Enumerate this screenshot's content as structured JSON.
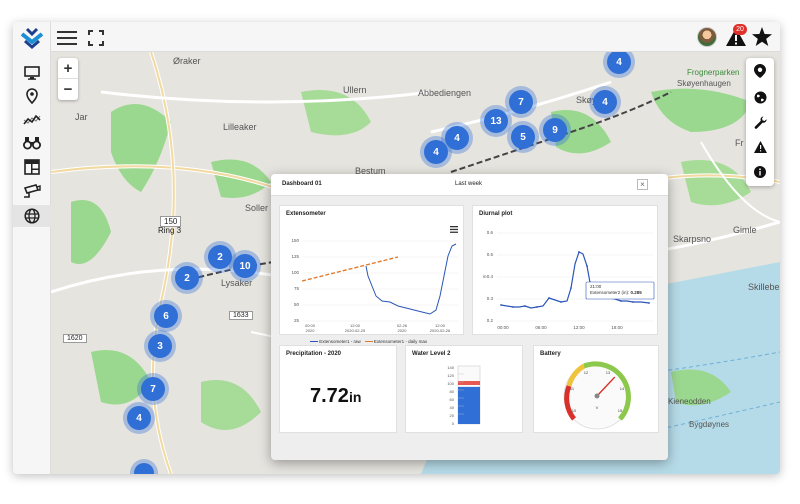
{
  "topbar": {
    "alert_count": "20"
  },
  "sidebar": {
    "items": [
      {
        "icon": "monitor-icon"
      },
      {
        "icon": "location-pin-icon"
      },
      {
        "icon": "trend-line-icon"
      },
      {
        "icon": "binoculars-icon"
      },
      {
        "icon": "layout-icon"
      },
      {
        "icon": "camera-icon"
      },
      {
        "icon": "globe-icon",
        "active": true
      }
    ]
  },
  "map": {
    "zoom_in": "+",
    "zoom_out": "−",
    "labels": {
      "oraker": "Øraker",
      "ullern": "Ullern",
      "abbediengen": "Abbediengen",
      "lilleaker": "Lilleaker",
      "jar": "Jar",
      "skoyen": "Skøyen",
      "skoyenhaugen": "Skøyenhaugen",
      "frognerparken": "Frognerparken",
      "bestum": "Bestum",
      "sollerud": "Soller",
      "lysaker": "Lysaker",
      "ring3_num": "150",
      "ring3": "Ring 3",
      "r1633": "1633",
      "r1620": "1620",
      "skarpsno": "Skarpsno",
      "gimle": "Gimle",
      "skillebekk": "Skillebe",
      "kieneodden": "Kieneodden",
      "bygdoynes": "Bygdøynes",
      "fr": "Fr"
    },
    "clusters": [
      "4",
      "4",
      "7",
      "13",
      "4",
      "5",
      "9",
      "4",
      "6",
      "2",
      "10",
      "2",
      "6",
      "3",
      "7",
      "4"
    ]
  },
  "dashboard": {
    "title": "Dashboard 01",
    "range": "Last week",
    "close": "×",
    "extensometer": {
      "title": "Extensometer",
      "legend_raw": "Extensometer1 - raw",
      "legend_max": "Extensometer1 - daily max",
      "y_ticks": [
        "150",
        "125",
        "100",
        "75",
        "50",
        "25"
      ],
      "x_ticks": [
        "00:00\n2020-02-25",
        "12:00\n2020-02-25",
        "00:00\n2020-02-26",
        "12:00\n2020-02-26"
      ]
    },
    "diurnal": {
      "title": "Diurnal plot",
      "y_ticks": [
        "0.6",
        "0.5",
        "0.4",
        "0.3",
        "0.2"
      ],
      "x_ticks": [
        "00:00",
        "06:00",
        "12:00",
        "18:00"
      ],
      "y_unit": "in",
      "tooltip_time": "21:00",
      "tooltip_series": "Extensometer2 (in):",
      "tooltip_value": "0.285"
    },
    "precipitation": {
      "title": "Precipitation - 2020",
      "value": "7.72",
      "unit": "in"
    },
    "water": {
      "title": "Water Level 2",
      "ticks": [
        "140",
        "120",
        "100",
        "80",
        "60",
        "40",
        "20",
        "0"
      ],
      "fraction": 0.64
    },
    "battery": {
      "title": "Battery",
      "ticks": [
        "10",
        "11",
        "12",
        "13",
        "14",
        "15"
      ],
      "unit": "V",
      "value": 13.3
    }
  },
  "colors": {
    "accent": "#2f6fd6",
    "alert": "#e0302b",
    "map_park": "#8fd68a",
    "map_water": "#b6dbe8"
  }
}
